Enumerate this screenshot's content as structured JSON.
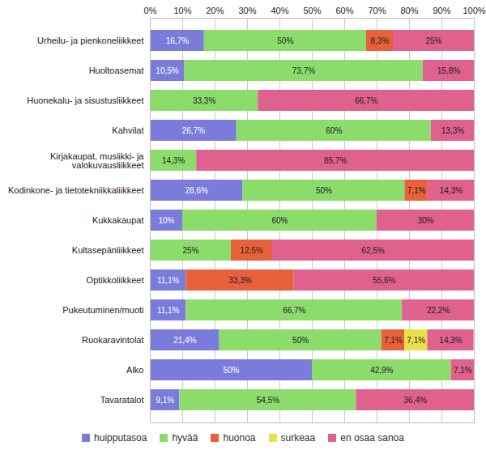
{
  "chart_data": {
    "type": "bar",
    "orientation": "horizontal",
    "stacked": true,
    "data_labels": true,
    "grid": true,
    "legend": "bottom",
    "xlim": [
      0,
      100
    ],
    "xticks": [
      {
        "value": 0,
        "label": "0%"
      },
      {
        "value": 10,
        "label": "10%"
      },
      {
        "value": 20,
        "label": "20%"
      },
      {
        "value": 30,
        "label": "30%"
      },
      {
        "value": 40,
        "label": "40%"
      },
      {
        "value": 50,
        "label": "50%"
      },
      {
        "value": 60,
        "label": "60%"
      },
      {
        "value": 70,
        "label": "70%"
      },
      {
        "value": 80,
        "label": "80%"
      },
      {
        "value": 90,
        "label": "90%"
      },
      {
        "value": 100,
        "label": "100%"
      }
    ],
    "categories": [
      "Urheilu- ja pienkoneliikkeet",
      "Huoltoasemat",
      "Huonekalu- ja sisustusliikkeet",
      "Kahvilat",
      "Kirjakaupat, musiikki- ja valokuvausliikkeet",
      "Kodinkone- ja tietotekniikkaliikkeet",
      "Kukkakaupat",
      "Kultasepänliikkeet",
      "Optikkoliikkeet",
      "Pukeutuminen/muoti",
      "Ruokaravintolat",
      "Alko",
      "Tavaratalot"
    ],
    "series": [
      {
        "name": "huipputasoa",
        "color": "#7b7bdb",
        "values": [
          16.7,
          10.5,
          null,
          26.7,
          null,
          28.6,
          10,
          null,
          11.1,
          11.1,
          21.4,
          50,
          9.1
        ],
        "value_labels": [
          "16,7%",
          "10,5%",
          null,
          "26,7%",
          null,
          "28,6%",
          "10%",
          null,
          "11,1%",
          "11,1%",
          "21,4%",
          "50%",
          "9,1%"
        ]
      },
      {
        "name": "hyvää",
        "color": "#8cdc6c",
        "values": [
          50,
          73.7,
          33.3,
          60,
          14.3,
          50,
          60,
          25,
          null,
          66.7,
          50,
          42.9,
          54.5
        ],
        "value_labels": [
          "50%",
          "73,7%",
          "33,3%",
          "60%",
          "14,3%",
          "50%",
          "60%",
          "25%",
          null,
          "66,7%",
          "50%",
          "42,9%",
          "54,5%"
        ]
      },
      {
        "name": "huonoa",
        "color": "#e8603c",
        "values": [
          8.3,
          null,
          null,
          null,
          null,
          7.1,
          null,
          12.5,
          33.3,
          null,
          7.1,
          null,
          null
        ],
        "value_labels": [
          "8,3%",
          null,
          null,
          null,
          null,
          "7,1%",
          null,
          "12,5%",
          "33,3%",
          null,
          "7,1%",
          null,
          null
        ]
      },
      {
        "name": "surkeaa",
        "color": "#ece04a",
        "values": [
          null,
          null,
          null,
          null,
          null,
          null,
          null,
          null,
          null,
          null,
          7.1,
          null,
          null
        ],
        "value_labels": [
          null,
          null,
          null,
          null,
          null,
          null,
          null,
          null,
          null,
          null,
          "7,1%",
          null,
          null
        ]
      },
      {
        "name": "en osaa sanoa",
        "color": "#e0608e",
        "values": [
          25,
          15.8,
          66.7,
          13.3,
          85.7,
          14.3,
          30,
          62.5,
          55.6,
          22.2,
          14.3,
          7.1,
          36.4
        ],
        "value_labels": [
          "25%",
          "15,8%",
          "66,7%",
          "13,3%",
          "85,7%",
          "14,3%",
          "30%",
          "62,5%",
          "55,6%",
          "22,2%",
          "14,3%",
          "7,1%",
          "36,4%"
        ]
      }
    ]
  }
}
